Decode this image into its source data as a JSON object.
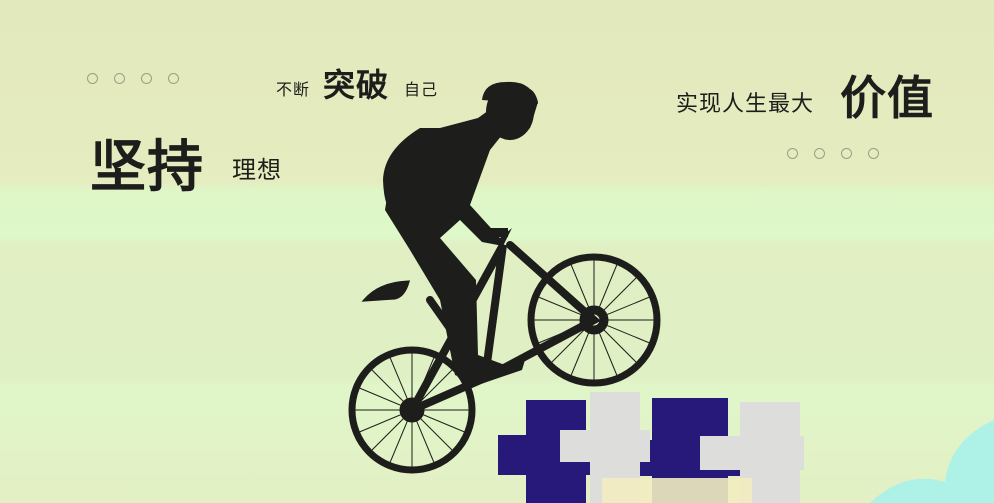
{
  "left_slogan": {
    "main": "坚持",
    "sub": "理想"
  },
  "center_slogan": {
    "pre": "不断",
    "main": "突破",
    "post": "自己"
  },
  "right_slogan": {
    "pre": "实现人生最大",
    "main": "价值"
  },
  "colors": {
    "background": "#e4ebbf",
    "silhouette": "#1d1d1b",
    "block_navy": "#27197a",
    "block_gray": "#dddddc",
    "corner_cloud": "#aef1e7"
  },
  "graphics": {
    "rider": "cyclist-silhouette",
    "block_text": "block-lettering"
  }
}
